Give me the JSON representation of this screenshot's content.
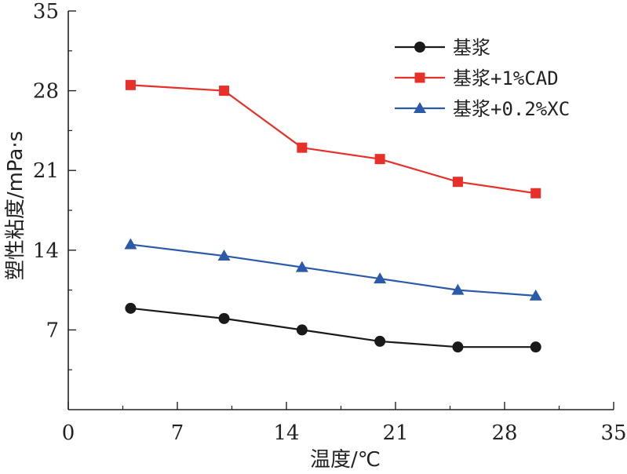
{
  "chart_data": {
    "type": "line",
    "title": "",
    "xlabel": "温度/℃",
    "ylabel": "塑性粘度/mPa·s",
    "xlim": [
      0,
      35
    ],
    "ylim": [
      0,
      35
    ],
    "xticks": [
      0,
      7,
      14,
      21,
      28,
      35
    ],
    "yticks": [
      7,
      14,
      21,
      28,
      35
    ],
    "x": [
      4,
      10,
      15,
      20,
      25,
      30
    ],
    "grid": false,
    "legend_position": "top-right",
    "series": [
      {
        "name": "基浆",
        "color": "#1a1a1a",
        "marker": "circle",
        "values": [
          8.9,
          8.0,
          7.0,
          6.0,
          5.5,
          5.5
        ]
      },
      {
        "name": "基浆+1%CAD",
        "color": "#e8302a",
        "marker": "square",
        "values": [
          28.5,
          28.0,
          23.0,
          22.0,
          20.0,
          19.0
        ]
      },
      {
        "name": "基浆+0.2%XC",
        "color": "#2b5aa8",
        "marker": "triangle",
        "values": [
          14.5,
          13.5,
          12.5,
          11.5,
          10.5,
          10.0
        ]
      }
    ]
  }
}
